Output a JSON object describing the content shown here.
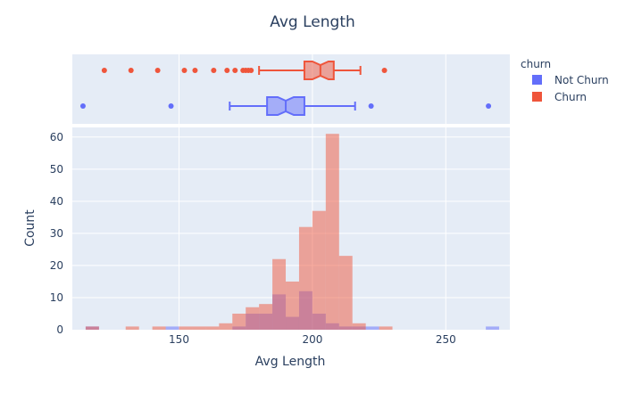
{
  "chart_data": {
    "type": "histogram",
    "title": "Avg Length",
    "xlabel": "Avg Length",
    "ylabel": "Count",
    "xlim": [
      110,
      274
    ],
    "ylim": [
      0,
      63
    ],
    "bin_width": 5,
    "x_ticks": [
      150,
      200,
      250
    ],
    "y_ticks": [
      0,
      10,
      20,
      30,
      40,
      50,
      60
    ],
    "legend": {
      "title": "churn",
      "position": "top-right"
    },
    "colors": {
      "Not Churn": "#636efa",
      "Churn": "#ef553b",
      "plot_bg": "#e5ecf6",
      "grid": "#ffffff",
      "text": "#2a3f5f"
    },
    "series": [
      {
        "name": "Not Churn",
        "bins": [
          {
            "x0": 115,
            "count": 1
          },
          {
            "x0": 145,
            "count": 1
          },
          {
            "x0": 170,
            "count": 1
          },
          {
            "x0": 175,
            "count": 5
          },
          {
            "x0": 180,
            "count": 5
          },
          {
            "x0": 185,
            "count": 11
          },
          {
            "x0": 190,
            "count": 4
          },
          {
            "x0": 195,
            "count": 12
          },
          {
            "x0": 200,
            "count": 5
          },
          {
            "x0": 205,
            "count": 2
          },
          {
            "x0": 210,
            "count": 1
          },
          {
            "x0": 215,
            "count": 1
          },
          {
            "x0": 220,
            "count": 1
          },
          {
            "x0": 265,
            "count": 1
          }
        ],
        "box": {
          "q1": 183,
          "median": 190,
          "q3": 197,
          "notch_low": 187,
          "notch_high": 193,
          "whisker_low": 169,
          "whisker_high": 216,
          "outliers": [
            114,
            147,
            222,
            266
          ]
        }
      },
      {
        "name": "Churn",
        "bins": [
          {
            "x0": 115,
            "count": 1
          },
          {
            "x0": 130,
            "count": 1
          },
          {
            "x0": 140,
            "count": 1
          },
          {
            "x0": 150,
            "count": 1
          },
          {
            "x0": 155,
            "count": 1
          },
          {
            "x0": 160,
            "count": 1
          },
          {
            "x0": 165,
            "count": 2
          },
          {
            "x0": 170,
            "count": 5
          },
          {
            "x0": 175,
            "count": 7
          },
          {
            "x0": 180,
            "count": 8
          },
          {
            "x0": 185,
            "count": 22
          },
          {
            "x0": 190,
            "count": 15
          },
          {
            "x0": 195,
            "count": 32
          },
          {
            "x0": 200,
            "count": 37
          },
          {
            "x0": 205,
            "count": 61
          },
          {
            "x0": 210,
            "count": 23
          },
          {
            "x0": 215,
            "count": 2
          },
          {
            "x0": 225,
            "count": 1
          }
        ],
        "box": {
          "q1": 197,
          "median": 203,
          "q3": 208,
          "notch_low": 200,
          "notch_high": 206,
          "whisker_low": 180,
          "whisker_high": 218,
          "outliers": [
            122,
            132,
            142,
            152,
            156,
            163,
            168,
            171,
            174,
            175,
            176,
            177,
            227
          ]
        }
      }
    ]
  }
}
